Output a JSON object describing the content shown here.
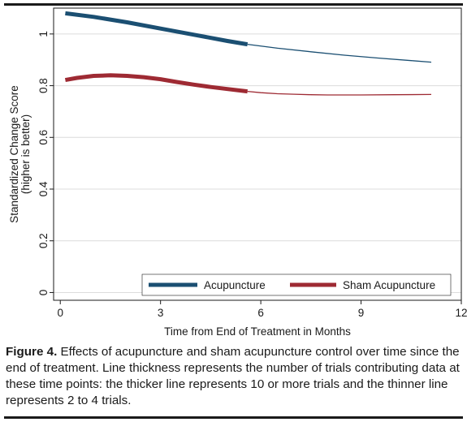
{
  "chart_data": {
    "type": "line",
    "xlabel": "Time from End of Treatment in Months",
    "ylabel": [
      "Standardized Change Score",
      "(higher is better)"
    ],
    "xlim": [
      -0.2,
      12
    ],
    "ylim": [
      -0.03,
      1.1
    ],
    "xticks": [
      0,
      3,
      6,
      9,
      12
    ],
    "yticks": [
      0,
      0.2,
      0.4,
      0.6,
      0.8,
      1
    ],
    "xtick_labels": [
      "0",
      "3",
      "6",
      "9",
      "12"
    ],
    "ytick_labels": [
      "0",
      "0.2",
      "0.4",
      "0.6",
      "0.8",
      "1"
    ],
    "grid": "horizontal",
    "legend_position": "bottom-right",
    "series": [
      {
        "name": "Acupuncture",
        "color": "#1b4f72",
        "x": [
          0.15,
          1,
          2,
          3,
          4,
          5,
          5.6,
          6.5,
          7.5,
          8.5,
          9.5,
          10.5,
          11.1
        ],
        "values": [
          1.08,
          1.066,
          1.045,
          1.021,
          0.997,
          0.973,
          0.96,
          0.945,
          0.931,
          0.918,
          0.907,
          0.897,
          0.891
        ],
        "thick_until_x": 5.6
      },
      {
        "name": "Sham Acupuncture",
        "color": "#9e2a33",
        "x": [
          0.15,
          0.5,
          1,
          1.5,
          2,
          2.5,
          3,
          3.5,
          4,
          4.5,
          5,
          5.6,
          6,
          6.5,
          7,
          7.5,
          8,
          9,
          10,
          11.1
        ],
        "values": [
          0.822,
          0.83,
          0.838,
          0.84,
          0.838,
          0.833,
          0.825,
          0.814,
          0.804,
          0.795,
          0.787,
          0.778,
          0.773,
          0.769,
          0.767,
          0.765,
          0.764,
          0.764,
          0.765,
          0.766
        ],
        "thick_until_x": 5.6
      }
    ]
  },
  "caption": {
    "label": "Figure 4.",
    "text": "Effects of acupuncture and sham acupuncture control over time since the end of treatment. Line thickness represents the number of trials contributing data at these time points: the thicker line represents 10 or more trials and the thinner line represents 2 to 4 trials."
  }
}
